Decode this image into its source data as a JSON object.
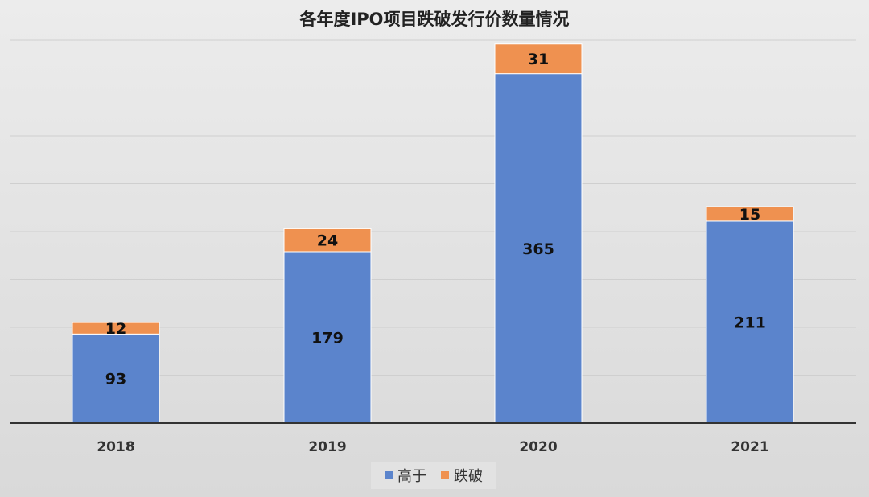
{
  "chart_data": {
    "type": "bar",
    "stacked": true,
    "title": "各年度IPO项目跌破发行价数量情况",
    "categories": [
      "2018",
      "2019",
      "2020",
      "2021"
    ],
    "series": [
      {
        "name": "高于",
        "values": [
          93,
          179,
          365,
          211
        ],
        "color": "#5b84cc"
      },
      {
        "name": "跌破",
        "values": [
          12,
          24,
          31,
          15
        ],
        "color": "#ef9150"
      }
    ],
    "ylim": [
      0,
      400
    ],
    "grid": true,
    "legend": "bottom"
  }
}
